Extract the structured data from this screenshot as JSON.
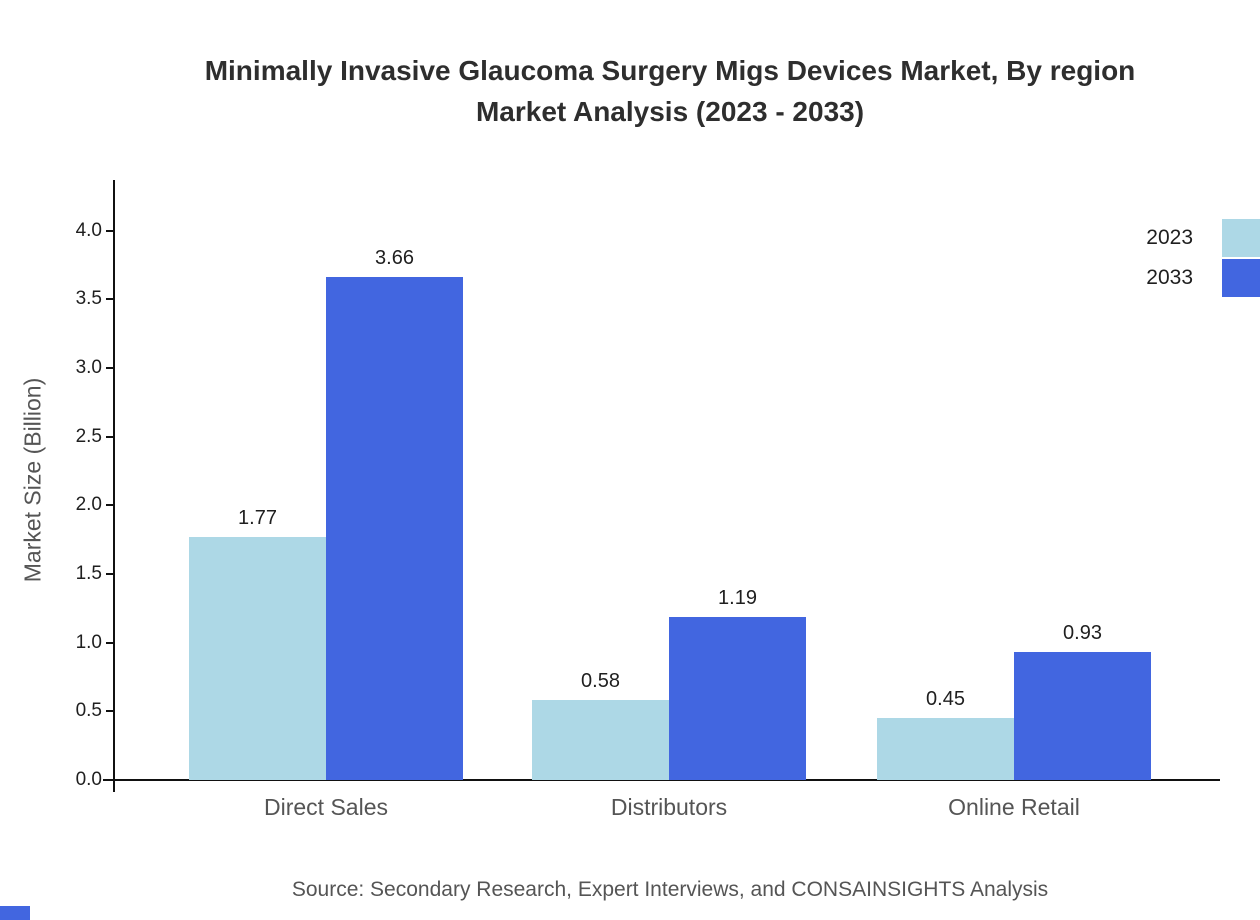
{
  "header": {
    "title_line1": "Minimally Invasive Glaucoma Surgery Migs Devices Market, By region",
    "title_line2": "Market Analysis (2023 - 2033)"
  },
  "footer": {
    "source": "Source: Secondary Research, Expert Interviews, and CONSAINSIGHTS Analysis"
  },
  "colors": {
    "series_2023": "#ADD8E6",
    "series_2033": "#4266E0",
    "title_text": "#2e2e2e",
    "axis_gray_text": "#555555",
    "axis_line": "#111111",
    "corner_logo": "#4266E0"
  },
  "chart_data": {
    "type": "bar",
    "title": "Minimally Invasive Glaucoma Surgery Migs Devices Market, By region Market Analysis (2023 - 2033)",
    "categories": [
      "Direct Sales",
      "Distributors",
      "Online Retail"
    ],
    "series": [
      {
        "name": "2023",
        "color": "#ADD8E6",
        "values": [
          1.77,
          0.58,
          0.45
        ]
      },
      {
        "name": "2033",
        "color": "#4266E0",
        "values": [
          3.66,
          1.19,
          0.93
        ]
      }
    ],
    "xlabel": "",
    "ylabel": "Market Size (Billion)",
    "ylim": [
      0,
      4.37
    ],
    "yticks": [
      "0.0",
      "0.5",
      "1.0",
      "1.5",
      "2.0",
      "2.5",
      "3.0",
      "3.5",
      "4.0"
    ],
    "grid": false,
    "legend_position": "top-right",
    "legend_entries": [
      "2023",
      "2033"
    ],
    "value_labels_shown": true
  }
}
